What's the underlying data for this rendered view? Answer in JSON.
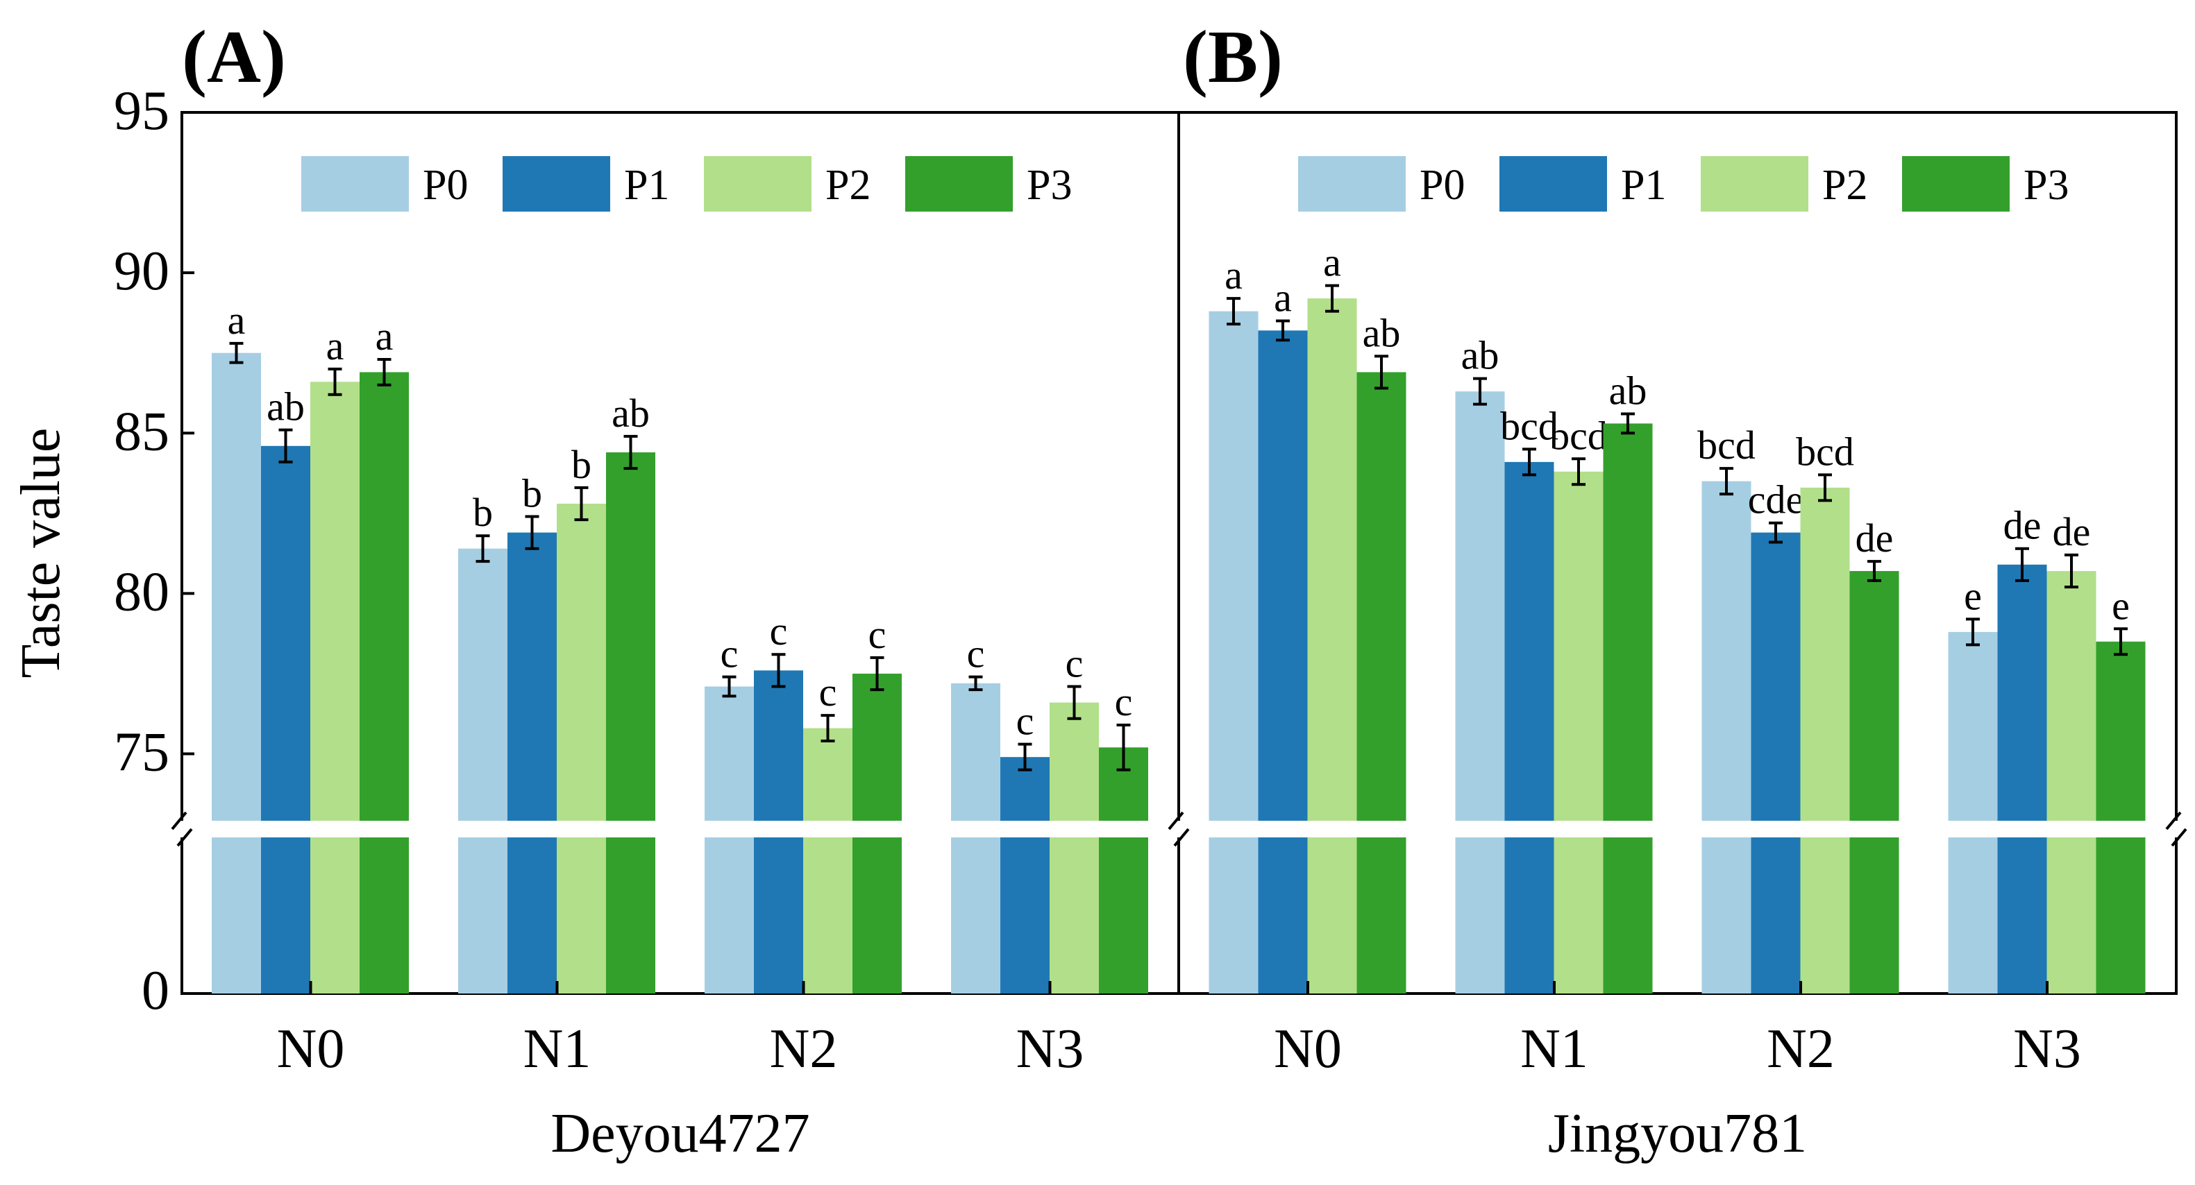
{
  "chart_data": {
    "type": "bar",
    "ylabel": "Taste value",
    "ylim_upper": [
      73,
      95
    ],
    "ylim_lower": [
      0,
      73
    ],
    "yticks": [
      75,
      80,
      85,
      90,
      95
    ],
    "ytick_labels": [
      "75",
      "80",
      "85",
      "90",
      "95"
    ],
    "bottom_tick_label": "0",
    "categories": [
      "N0",
      "N1",
      "N2",
      "N3"
    ],
    "series_names": [
      "P0",
      "P1",
      "P2",
      "P3"
    ],
    "colors": [
      "#a6cee3",
      "#1f78b4",
      "#b2df8a",
      "#33a02c"
    ],
    "panels": [
      {
        "label": "(A)",
        "xlabel": "Deyou4727",
        "series": [
          {
            "name": "P0",
            "values": [
              87.5,
              81.4,
              77.1,
              77.2
            ],
            "errors": [
              0.3,
              0.4,
              0.3,
              0.2
            ],
            "letters": [
              "a",
              "b",
              "c",
              "c"
            ]
          },
          {
            "name": "P1",
            "values": [
              84.6,
              81.9,
              77.6,
              74.9
            ],
            "errors": [
              0.5,
              0.5,
              0.5,
              0.4
            ],
            "letters": [
              "ab",
              "b",
              "c",
              "c"
            ]
          },
          {
            "name": "P2",
            "values": [
              86.6,
              82.8,
              75.8,
              76.6
            ],
            "errors": [
              0.4,
              0.5,
              0.4,
              0.5
            ],
            "letters": [
              "a",
              "b",
              "c",
              "c"
            ]
          },
          {
            "name": "P3",
            "values": [
              86.9,
              84.4,
              77.5,
              75.2
            ],
            "errors": [
              0.4,
              0.5,
              0.5,
              0.7
            ],
            "letters": [
              "a",
              "ab",
              "c",
              "c"
            ]
          }
        ]
      },
      {
        "label": "(B)",
        "xlabel": "Jingyou781",
        "series": [
          {
            "name": "P0",
            "values": [
              88.8,
              86.3,
              83.5,
              78.8
            ],
            "errors": [
              0.4,
              0.4,
              0.4,
              0.4
            ],
            "letters": [
              "a",
              "ab",
              "bcd",
              "e"
            ]
          },
          {
            "name": "P1",
            "values": [
              88.2,
              84.1,
              81.9,
              80.9
            ],
            "errors": [
              0.3,
              0.4,
              0.3,
              0.5
            ],
            "letters": [
              "a",
              "bcd",
              "cde",
              "de"
            ]
          },
          {
            "name": "P2",
            "values": [
              89.2,
              83.8,
              83.3,
              80.7
            ],
            "errors": [
              0.4,
              0.4,
              0.4,
              0.5
            ],
            "letters": [
              "a",
              "bcd",
              "bcd",
              "de"
            ]
          },
          {
            "name": "P3",
            "values": [
              86.9,
              85.3,
              80.7,
              78.5
            ],
            "errors": [
              0.5,
              0.3,
              0.3,
              0.4
            ],
            "letters": [
              "ab",
              "ab",
              "de",
              "e"
            ]
          }
        ]
      }
    ]
  }
}
